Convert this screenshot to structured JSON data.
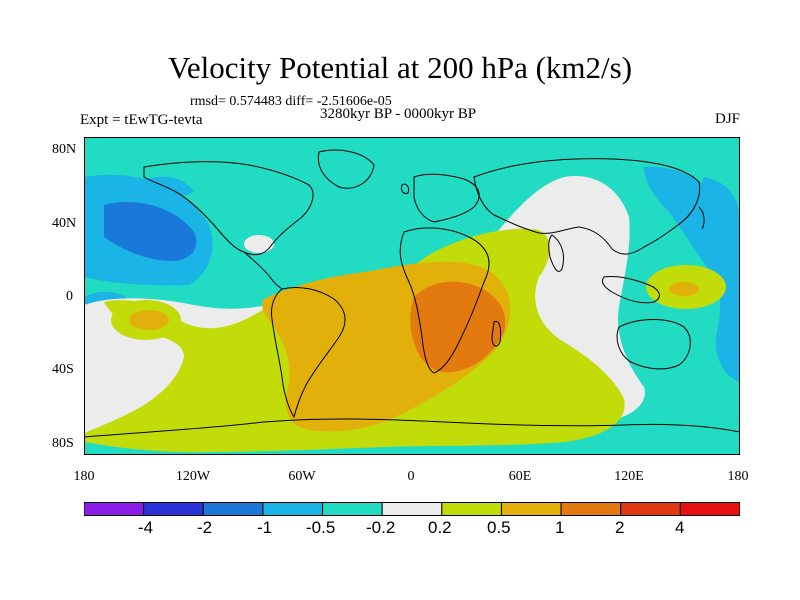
{
  "title": "Velocity Potential at 200 hPa (km2/s)",
  "stats": "rmsd= 0.574483 diff= -2.51606e-05",
  "period": "3280kyr BP - 0000kyr BP",
  "experiment": "Expt = tEwTG-tevta",
  "season": "DJF",
  "axes": {
    "y_labels": [
      "80N",
      "40N",
      "0",
      "40S",
      "80S"
    ],
    "x_labels": [
      "180",
      "120W",
      "60W",
      "0",
      "60E",
      "120E",
      "180"
    ]
  },
  "colorbar": {
    "labels": [
      "-4",
      "-2",
      "-1",
      "-0.5",
      "-0.2",
      "0.2",
      "0.5",
      "1",
      "2",
      "4"
    ],
    "colors": [
      "#8a1ee6",
      "#2a32d8",
      "#1a78d8",
      "#1ab4e6",
      "#21dcc2",
      "#ececec",
      "#c2dc0a",
      "#e2b00a",
      "#e27a10",
      "#e23a10",
      "#e61010"
    ]
  },
  "colors": {
    "land_line": "#000000",
    "frame": "#000000"
  }
}
